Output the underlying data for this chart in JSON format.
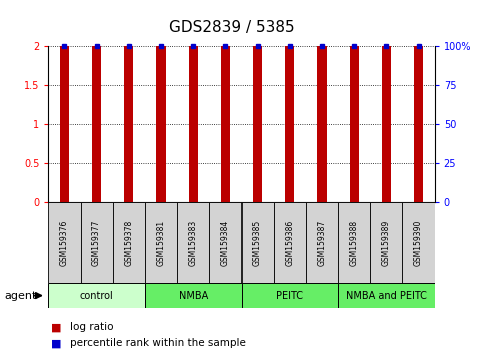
{
  "title": "GDS2839 / 5385",
  "samples": [
    "GSM159376",
    "GSM159377",
    "GSM159378",
    "GSM159381",
    "GSM159383",
    "GSM159384",
    "GSM159385",
    "GSM159386",
    "GSM159387",
    "GSM159388",
    "GSM159389",
    "GSM159390"
  ],
  "log_ratio": [
    2.0,
    2.0,
    2.0,
    2.0,
    2.0,
    2.0,
    2.0,
    2.0,
    2.0,
    2.0,
    2.0,
    2.0
  ],
  "percentile": [
    100,
    100,
    100,
    100,
    100,
    100,
    100,
    100,
    100,
    100,
    100,
    100
  ],
  "groups": [
    {
      "label": "control",
      "start": 0,
      "end": 3,
      "color": "#ccffcc"
    },
    {
      "label": "NMBA",
      "start": 3,
      "end": 6,
      "color": "#66ee66"
    },
    {
      "label": "PEITC",
      "start": 6,
      "end": 9,
      "color": "#66ee66"
    },
    {
      "label": "NMBA and PEITC",
      "start": 9,
      "end": 12,
      "color": "#66ee66"
    }
  ],
  "bar_color": "#bb0000",
  "dot_color": "#0000cc",
  "ylim_left": [
    0,
    2
  ],
  "ylim_right": [
    0,
    100
  ],
  "yticks_left": [
    0,
    0.5,
    1.0,
    1.5,
    2.0
  ],
  "ytick_labels_left": [
    "0",
    "0.5",
    "1",
    "1.5",
    "2"
  ],
  "yticks_right": [
    0,
    25,
    50,
    75,
    100
  ],
  "ytick_labels_right": [
    "0",
    "25",
    "50",
    "75",
    "100%"
  ],
  "bar_width": 0.28,
  "title_fontsize": 11,
  "tick_fontsize": 7,
  "sample_fontsize": 5.5,
  "group_fontsize": 7,
  "legend_fontsize": 7.5,
  "agent_fontsize": 8
}
